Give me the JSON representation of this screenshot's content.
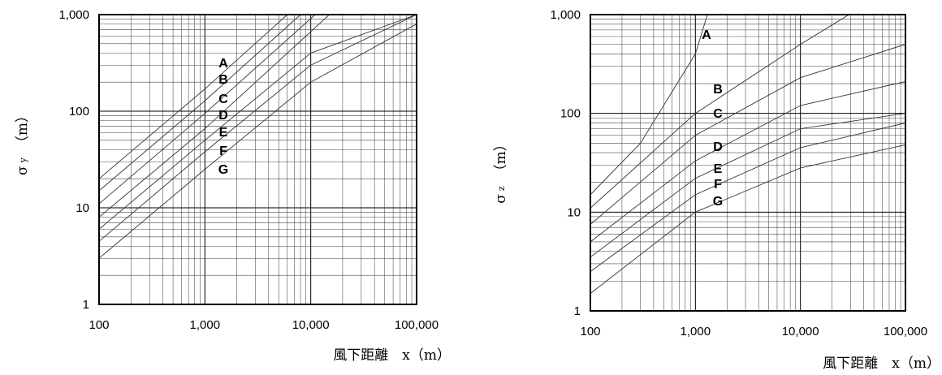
{
  "chart_data": [
    {
      "type": "line",
      "scale": "log-log",
      "grid": true,
      "xlim": [
        100,
        100000
      ],
      "ylim": [
        1,
        1000
      ],
      "x_ticks": [
        "100",
        "1,000",
        "10,000",
        "100,000"
      ],
      "y_ticks": [
        "1",
        "10",
        "100",
        "1,000"
      ],
      "ylabel": {
        "main": "σ",
        "sub": "y",
        "unit": "（m）"
      },
      "xlabel": "風下距離　x（m）",
      "series": [
        {
          "name": "A",
          "x": [
            100,
            1000,
            6000
          ],
          "y": [
            20,
            170,
            1000
          ]
        },
        {
          "name": "B",
          "x": [
            100,
            1000,
            8000
          ],
          "y": [
            15,
            128,
            1000
          ]
        },
        {
          "name": "C",
          "x": [
            100,
            1000,
            11000
          ],
          "y": [
            11,
            95,
            1000
          ]
        },
        {
          "name": "D",
          "x": [
            100,
            1000,
            15000
          ],
          "y": [
            8,
            66,
            1000
          ]
        },
        {
          "name": "E",
          "x": [
            100,
            1000,
            10000,
            100000
          ],
          "y": [
            6,
            50,
            400,
            1000
          ]
        },
        {
          "name": "F",
          "x": [
            100,
            1000,
            10000,
            100000
          ],
          "y": [
            4.5,
            38,
            300,
            1000
          ]
        },
        {
          "name": "G",
          "x": [
            100,
            1000,
            10000,
            100000
          ],
          "y": [
            3,
            25,
            200,
            800
          ]
        }
      ]
    },
    {
      "type": "line",
      "scale": "log-log",
      "grid": true,
      "xlim": [
        100,
        100000
      ],
      "ylim": [
        1,
        1000
      ],
      "x_ticks": [
        "100",
        "1,000",
        "10,000",
        "100,000"
      ],
      "y_ticks": [
        "1",
        "10",
        "100",
        "1,000"
      ],
      "ylabel": {
        "main": "σ",
        "sub": "z",
        "unit": "（m）"
      },
      "xlabel": "風下距離　x（m）",
      "series": [
        {
          "name": "A",
          "x": [
            100,
            300,
            1000,
            1300
          ],
          "y": [
            15,
            50,
            400,
            1000
          ]
        },
        {
          "name": "B",
          "x": [
            100,
            1000,
            10000,
            29000
          ],
          "y": [
            11,
            100,
            500,
            1000
          ]
        },
        {
          "name": "C",
          "x": [
            100,
            1000,
            10000,
            100000
          ],
          "y": [
            7.5,
            60,
            230,
            500
          ]
        },
        {
          "name": "D",
          "x": [
            100,
            1000,
            10000,
            100000
          ],
          "y": [
            5,
            33,
            120,
            210
          ]
        },
        {
          "name": "E",
          "x": [
            100,
            1000,
            10000,
            100000
          ],
          "y": [
            3.5,
            22,
            70,
            100
          ]
        },
        {
          "name": "F",
          "x": [
            100,
            1000,
            10000,
            100000
          ],
          "y": [
            2.5,
            15,
            45,
            80
          ]
        },
        {
          "name": "G",
          "x": [
            100,
            1000,
            10000,
            100000
          ],
          "y": [
            1.5,
            10,
            28,
            48
          ]
        }
      ]
    }
  ]
}
